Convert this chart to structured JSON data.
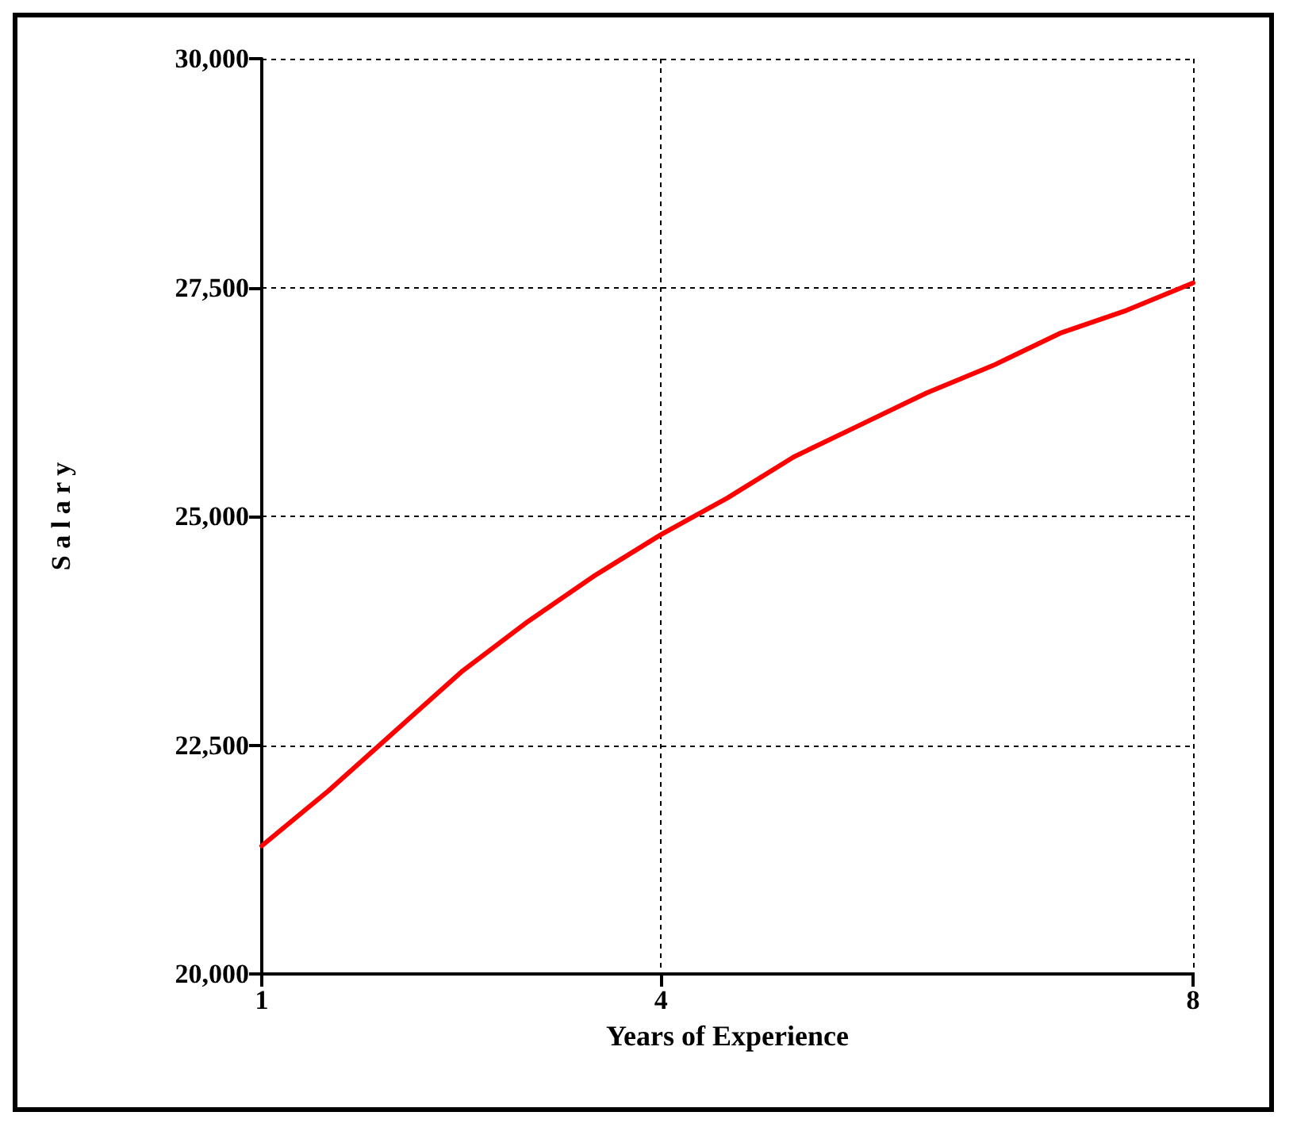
{
  "chart_data": {
    "type": "line",
    "xlabel": "Years of Experience",
    "ylabel": "S a l a r y",
    "x": [
      1,
      1.5,
      2,
      2.5,
      3,
      3.5,
      4,
      4.5,
      5,
      5.5,
      6,
      6.5,
      7,
      7.5,
      8
    ],
    "series": [
      {
        "color": "#ff0000",
        "values": [
          21400,
          22000,
          22650,
          23300,
          23850,
          24350,
          24800,
          25200,
          25650,
          26000,
          26350,
          26650,
          27000,
          27250,
          27550
        ]
      }
    ],
    "xlim": [
      1,
      8
    ],
    "xticks": [
      1,
      4,
      8
    ],
    "ylim": [
      20000,
      30000
    ],
    "yticks": [
      {
        "value": 20000,
        "label": "20,000"
      },
      {
        "value": 22500,
        "label": "22,500"
      },
      {
        "value": 25000,
        "label": "25,000"
      },
      {
        "value": 27500,
        "label": "27,500"
      },
      {
        "value": 30000,
        "label": "30,000"
      }
    ],
    "grid": true,
    "marker": "none",
    "line_style": "solid"
  }
}
